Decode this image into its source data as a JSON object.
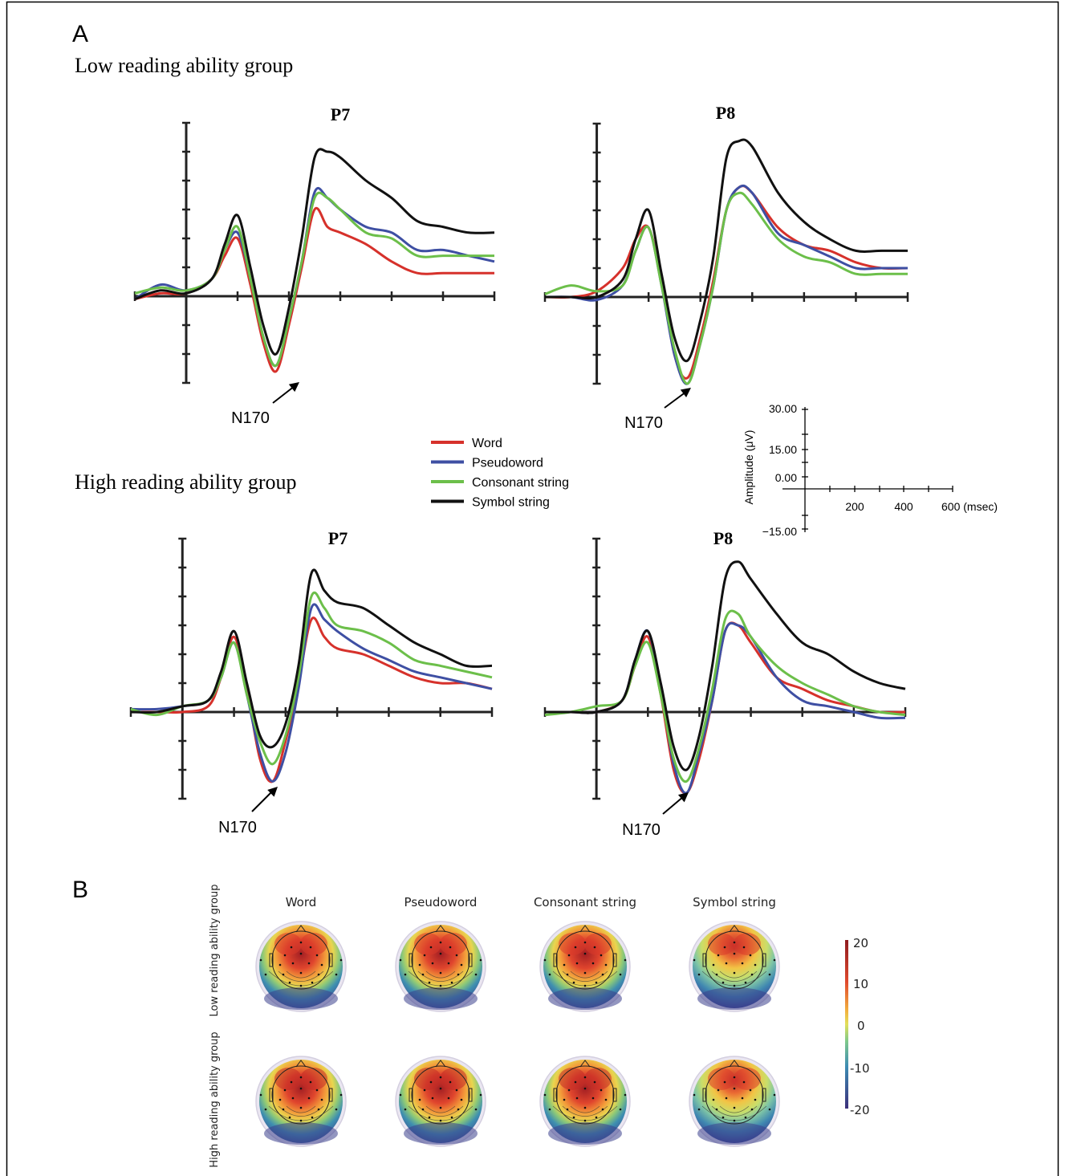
{
  "figure": {
    "panel_a": "A",
    "panel_b": "B",
    "group_low": "Low reading ability group",
    "group_high": "High reading ability group",
    "peak_label": "N170"
  },
  "legend": {
    "items": [
      {
        "label": "Word",
        "color": "#d6312b"
      },
      {
        "label": "Pseudoword",
        "color": "#3e4fa3"
      },
      {
        "label": "Consonant string",
        "color": "#6cbf4a"
      },
      {
        "label": "Symbol string",
        "color": "#111111"
      }
    ]
  },
  "scale_axis": {
    "ylabel": "Amplitude (μV)",
    "yticks": [
      "30.00",
      "15.00",
      "0.00",
      "−15.00"
    ],
    "xticks": [
      "200",
      "400",
      "600 (msec)"
    ]
  },
  "chart_data": [
    {
      "type": "line",
      "group": "Low reading ability group",
      "title": "P7",
      "xlabel": "",
      "ylabel": "Amplitude (μV)",
      "xlim": [
        -200,
        1200
      ],
      "ylim": [
        -15,
        30
      ],
      "annotation": "N170",
      "x": [
        -200,
        -100,
        0,
        100,
        150,
        200,
        250,
        300,
        350,
        400,
        450,
        500,
        550,
        600,
        700,
        800,
        900,
        1000,
        1100,
        1200
      ],
      "series": [
        {
          "name": "Word",
          "color": "#d6312b",
          "values": [
            -0.5,
            0.5,
            0.5,
            3,
            7,
            10,
            2,
            -8,
            -13,
            -5,
            5,
            15,
            12,
            11,
            9,
            6,
            4,
            4,
            4,
            4
          ]
        },
        {
          "name": "Pseudoword",
          "color": "#3e4fa3",
          "values": [
            -0.5,
            2,
            1,
            3,
            8,
            11,
            3,
            -7,
            -12,
            -4,
            6,
            18,
            17,
            15,
            12,
            11,
            8,
            8,
            7,
            6
          ]
        },
        {
          "name": "Consonant string",
          "color": "#6cbf4a",
          "values": [
            0.5,
            1.5,
            1,
            3,
            8,
            12,
            3,
            -7,
            -12,
            -4,
            6,
            17,
            17,
            15,
            11,
            10,
            7,
            7,
            7,
            7
          ]
        },
        {
          "name": "Symbol string",
          "color": "#111111",
          "values": [
            -0.5,
            1,
            0.5,
            3,
            9,
            14,
            5,
            -5,
            -10,
            -2,
            10,
            24,
            25,
            24,
            20,
            17,
            13,
            12,
            11,
            11
          ]
        }
      ]
    },
    {
      "type": "line",
      "group": "Low reading ability group",
      "title": "P8",
      "xlabel": "",
      "ylabel": "Amplitude (μV)",
      "xlim": [
        -200,
        1200
      ],
      "ylim": [
        -15,
        30
      ],
      "annotation": "N170",
      "x": [
        -200,
        -100,
        0,
        100,
        150,
        200,
        250,
        300,
        350,
        400,
        450,
        500,
        550,
        600,
        700,
        800,
        900,
        1000,
        1100,
        1200
      ],
      "series": [
        {
          "name": "Word",
          "color": "#d6312b",
          "values": [
            0,
            0,
            1,
            5,
            10,
            12,
            3,
            -10,
            -14,
            -7,
            3,
            15,
            19,
            18,
            12,
            9,
            8,
            6,
            5,
            5
          ]
        },
        {
          "name": "Pseudoword",
          "color": "#3e4fa3",
          "values": [
            0,
            0,
            -0.5,
            2,
            8,
            12,
            2,
            -10,
            -15,
            -8,
            2,
            15,
            19,
            18,
            11,
            9,
            7,
            5,
            5,
            5
          ]
        },
        {
          "name": "Consonant string",
          "color": "#6cbf4a",
          "values": [
            0.5,
            2,
            1,
            2,
            8,
            12,
            2,
            -9,
            -15,
            -8,
            2,
            15,
            18,
            16,
            10,
            7,
            6,
            4,
            4,
            4
          ]
        },
        {
          "name": "Symbol string",
          "color": "#111111",
          "values": [
            0,
            0,
            0,
            3,
            10,
            15,
            4,
            -7,
            -11,
            -4,
            7,
            24,
            27,
            26,
            18,
            13,
            10,
            8,
            8,
            8
          ]
        }
      ]
    },
    {
      "type": "line",
      "group": "High reading ability group",
      "title": "P7",
      "xlabel": "",
      "ylabel": "Amplitude (μV)",
      "xlim": [
        -200,
        1200
      ],
      "ylim": [
        -15,
        30
      ],
      "annotation": "N170",
      "x": [
        -200,
        -100,
        0,
        100,
        150,
        200,
        250,
        300,
        350,
        400,
        450,
        500,
        550,
        600,
        700,
        800,
        900,
        1000,
        1100,
        1200
      ],
      "series": [
        {
          "name": "Word",
          "color": "#d6312b",
          "values": [
            0,
            0,
            0,
            1,
            6,
            13,
            4,
            -8,
            -12,
            -5,
            5,
            16,
            13,
            11,
            10,
            8,
            6,
            5,
            5,
            4
          ]
        },
        {
          "name": "Pseudoword",
          "color": "#3e4fa3",
          "values": [
            0.5,
            0.5,
            1,
            2,
            6,
            12,
            3,
            -7,
            -12,
            -7,
            4,
            18,
            16,
            14,
            11,
            9,
            7,
            6,
            5,
            4
          ]
        },
        {
          "name": "Consonant string",
          "color": "#6cbf4a",
          "values": [
            0.5,
            -0.5,
            1,
            2,
            6,
            12,
            3,
            -5,
            -9,
            -4,
            6,
            20,
            18,
            15,
            14,
            12,
            9,
            8,
            7,
            6
          ]
        },
        {
          "name": "Symbol string",
          "color": "#111111",
          "values": [
            0,
            0,
            1,
            2,
            7,
            14,
            5,
            -4,
            -6,
            -2,
            8,
            24,
            21,
            19,
            18,
            15,
            12,
            10,
            8,
            8
          ]
        }
      ]
    },
    {
      "type": "line",
      "group": "High reading ability group",
      "title": "P8",
      "xlabel": "",
      "ylabel": "Amplitude (μV)",
      "xlim": [
        -200,
        1200
      ],
      "ylim": [
        -15,
        30
      ],
      "annotation": "N170",
      "x": [
        -200,
        -100,
        0,
        100,
        150,
        200,
        250,
        300,
        350,
        400,
        450,
        500,
        550,
        600,
        700,
        800,
        900,
        1000,
        1100,
        1200
      ],
      "series": [
        {
          "name": "Word",
          "color": "#d6312b",
          "values": [
            0,
            0,
            0,
            2,
            8,
            13,
            3,
            -10,
            -14,
            -8,
            2,
            14,
            15,
            12,
            6,
            4,
            2,
            1,
            0,
            0
          ]
        },
        {
          "name": "Pseudoword",
          "color": "#3e4fa3",
          "values": [
            0,
            0,
            0,
            2,
            9,
            14,
            4,
            -9,
            -14,
            -7,
            2,
            14,
            15,
            13,
            6,
            2,
            1,
            0,
            -1,
            -1
          ]
        },
        {
          "name": "Consonant string",
          "color": "#6cbf4a",
          "values": [
            -0.5,
            0,
            1,
            2,
            8,
            12,
            3,
            -8,
            -12,
            -6,
            4,
            16,
            17,
            13,
            8,
            5,
            3,
            1,
            0,
            -0.5
          ]
        },
        {
          "name": "Symbol string",
          "color": "#111111",
          "values": [
            0,
            0,
            0,
            2,
            9,
            14,
            5,
            -6,
            -10,
            -4,
            8,
            23,
            26,
            23,
            17,
            12,
            10,
            7,
            5,
            4
          ]
        }
      ]
    },
    {
      "type": "heatmap",
      "columns": [
        "Word",
        "Pseudoword",
        "Consonant string",
        "Symbol string"
      ],
      "rows": [
        "Low reading ability group",
        "High reading ability group"
      ],
      "colorbar": {
        "ticks": [
          20,
          10,
          0,
          -10,
          -20
        ],
        "range": [
          -20,
          20
        ]
      }
    }
  ]
}
